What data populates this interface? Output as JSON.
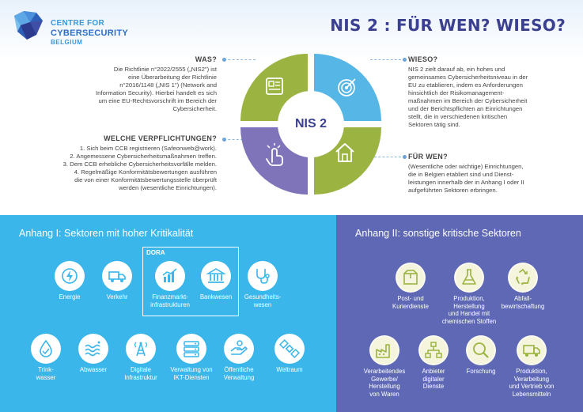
{
  "logo": {
    "line1": "CENTRE FOR",
    "line2": "CYBERSECURITY",
    "line3": "BELGIUM"
  },
  "title": "NIS 2 : FÜR WEN? WIESO?",
  "wheel": {
    "center": "NIS 2"
  },
  "was": {
    "heading": "WAS?",
    "lines": [
      "Die Richtlinie n°2022/2555 („NIS2\") ist",
      "eine Überarbeitung der Richtlinie",
      "n°2016/1148 („NIS 1\") (Network and",
      "Information Security). Hierbei handelt es sich",
      "um eine EU-Rechtsvorschrift im Bereich der",
      "Cybersicherheit."
    ]
  },
  "verpflichtungen": {
    "heading": "WELCHE VERPFLICHTUNGEN?",
    "lines": [
      "1. Sich beim CCB registrieren (Safeonweb@work).",
      "2. Angemessene Cybersicherheitsmaßnahmen treffen.",
      "3. Dem CCB erhebliche Cybersicherheitsvorfälle melden.",
      "4. Regelmäßige Konformitätsbewertungen ausführen",
      "die von einer Konformitätsbewertungsstelle überprüft",
      "werden (wesentliche Einrichtungen)."
    ]
  },
  "wieso": {
    "heading": "WIESO?",
    "lines": [
      "NIS 2 zielt darauf ab, ein hohes und",
      "gemeinsames Cybersicherheitsniveau in der",
      "EU zu etablieren, indem es Anforderungen",
      "hinsichtlich der Risikomanagement-",
      "maßnahmen im Bereich der Cybersicherheit",
      "und der Berichtspflichten an Einrichtungen",
      "stellt, die in verschiedenen kritischen",
      "Sektoren tätig sind."
    ]
  },
  "fuer_wen": {
    "heading": "FÜR WEN?",
    "lines": [
      "(Wesentliche oder wichtige) Einrichtungen,",
      "die in Belgien etabliert sind und Dienst-",
      "leistungen innerhalb der in Anhang I oder II",
      "aufgeführten Sektoren erbringen."
    ]
  },
  "annex1": {
    "title": "Anhang I: Sektoren mit hoher Kritikalität",
    "dora": "DORA",
    "sectors": [
      {
        "label": "Energie",
        "icon": "energy-icon"
      },
      {
        "label": "Verkehr",
        "icon": "truck-icon"
      },
      {
        "label": "Finanzmarkt-\ninfrastrukturen",
        "icon": "finance-chart-icon"
      },
      {
        "label": "Bankwesen",
        "icon": "bank-icon"
      },
      {
        "label": "Gesundheits-\nwesen",
        "icon": "stethoscope-icon"
      },
      {
        "label": "Trink-\nwasser",
        "icon": "water-drop-icon"
      },
      {
        "label": "Abwasser",
        "icon": "waves-icon"
      },
      {
        "label": "Digitale\nInfrastruktur",
        "icon": "antenna-icon"
      },
      {
        "label": "Verwaltung von\nIKT-Diensten",
        "icon": "server-icon"
      },
      {
        "label": "Öffentliche\nVerwaltung",
        "icon": "hands-icon"
      },
      {
        "label": "Weltraum",
        "icon": "satellite-icon"
      }
    ]
  },
  "annex2": {
    "title": "Anhang II: sonstige kritische Sektoren",
    "sectors": [
      {
        "label": "Post- und\nKurierdienste",
        "icon": "parcel-icon"
      },
      {
        "label": "Produktion,\nHerstellung\nund Handel mit\nchemischen Stoffen",
        "icon": "flask-icon"
      },
      {
        "label": "Abfall-\nbewirtschaftung",
        "icon": "recycle-icon"
      },
      {
        "label": "Verarbeitendes\nGewerbe/\nHerstellung\nvon Waren",
        "icon": "factory-icon"
      },
      {
        "label": "Anbieter\ndigitaler\nDienste",
        "icon": "network-icon"
      },
      {
        "label": "Forschung",
        "icon": "magnifier-icon"
      },
      {
        "label": "Produktion,\nVerarbeitung\nund Vertrieb von\nLebensmitteln",
        "icon": "delivery-truck-icon"
      }
    ]
  },
  "colors": {
    "annex1_bg": "#3ab6ea",
    "annex2_bg": "#5e68b5",
    "title": "#3b3f8f",
    "green": "#9bb341",
    "purple": "#7f74b9",
    "blue": "#56b6e6"
  }
}
